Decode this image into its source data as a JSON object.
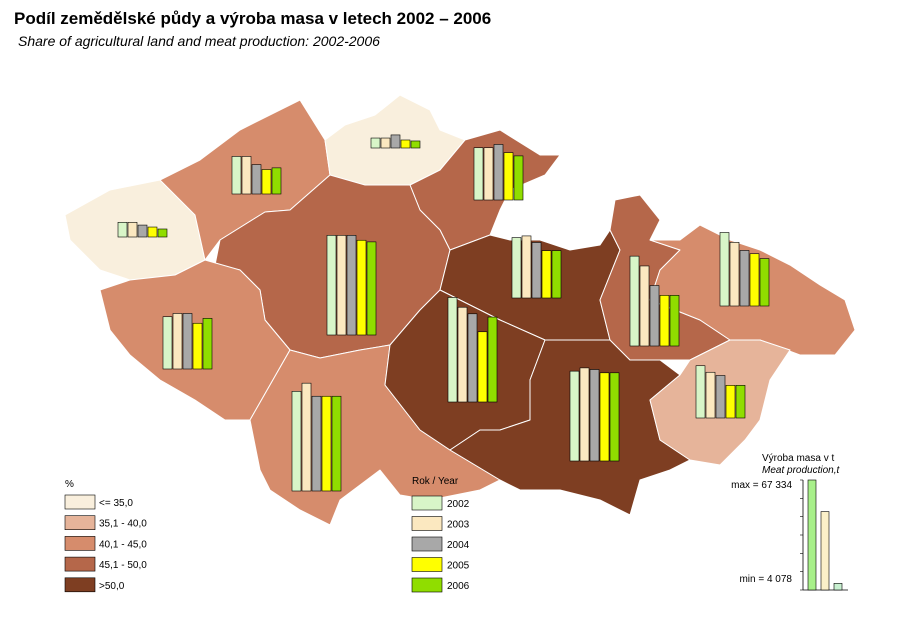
{
  "header": {
    "title": "Podíl zemědělské půdy a výroba masa v letech 2002 – 2006",
    "subtitle": "Share of agricultural land and meat production: 2002-2006"
  },
  "classes": {
    "title": "%",
    "items": [
      {
        "label": "<= 35,0",
        "color": "#f9efdd"
      },
      {
        "label": "35,1 - 40,0",
        "color": "#e6b49a"
      },
      {
        "label": "40,1 - 45,0",
        "color": "#d68c6c"
      },
      {
        "label": "45,1 - 50,0",
        "color": "#b5674a"
      },
      {
        "label": ">50,0",
        "color": "#7e3e22"
      }
    ]
  },
  "years": {
    "title": "Rok / Year",
    "items": [
      {
        "label": "2002",
        "color": "#d8f5c8"
      },
      {
        "label": "2003",
        "color": "#fbe8c0"
      },
      {
        "label": "2004",
        "color": "#a8a8a8"
      },
      {
        "label": "2005",
        "color": "#ffff00"
      },
      {
        "label": "2006",
        "color": "#90dd00"
      }
    ]
  },
  "regions": [
    {
      "color": "#f9efdd",
      "values": [
        9000,
        9000,
        7300,
        6100,
        4900
      ]
    },
    {
      "color": "#d68c6c",
      "values": [
        23000,
        23000,
        18000,
        15000,
        16000
      ]
    },
    {
      "color": "#f9efdd",
      "values": [
        6100,
        6100,
        8000,
        4900,
        4300
      ]
    },
    {
      "color": "#b5674a",
      "values": [
        32000,
        32000,
        34000,
        29000,
        27000
      ]
    },
    {
      "color": "#b5674a",
      "values": [
        61000,
        61000,
        61000,
        58000,
        57000
      ]
    },
    {
      "color": "#7e3e22",
      "values": [
        37000,
        38000,
        34000,
        29000,
        29000
      ]
    },
    {
      "color": "#d68c6c",
      "values": [
        32000,
        34000,
        34000,
        28000,
        31000
      ]
    },
    {
      "color": "#d68c6c",
      "values": [
        61000,
        66000,
        58000,
        58000,
        58000
      ]
    },
    {
      "color": "#7e3e22",
      "values": [
        64000,
        58000,
        54000,
        43000,
        52000
      ]
    },
    {
      "color": "#7e3e22",
      "values": [
        55000,
        57000,
        56000,
        54000,
        54000
      ]
    },
    {
      "color": "#b5674a",
      "values": [
        55000,
        49000,
        37000,
        31000,
        31000
      ]
    },
    {
      "color": "#d68c6c",
      "values": [
        45000,
        39000,
        34000,
        32000,
        29000
      ]
    },
    {
      "color": "#e6b49a",
      "values": [
        32000,
        28000,
        26000,
        20000,
        20000
      ]
    }
  ],
  "scale": {
    "title": "Výroba masa v t",
    "subtitle": "Meat production,t",
    "values": [
      67334,
      48000,
      4078
    ],
    "value_labels": [
      "max = 67 334",
      null,
      "min = 4 078"
    ],
    "colors": [
      "#a8f08a",
      "#fbf0c8",
      "#c8f0d0"
    ]
  }
}
